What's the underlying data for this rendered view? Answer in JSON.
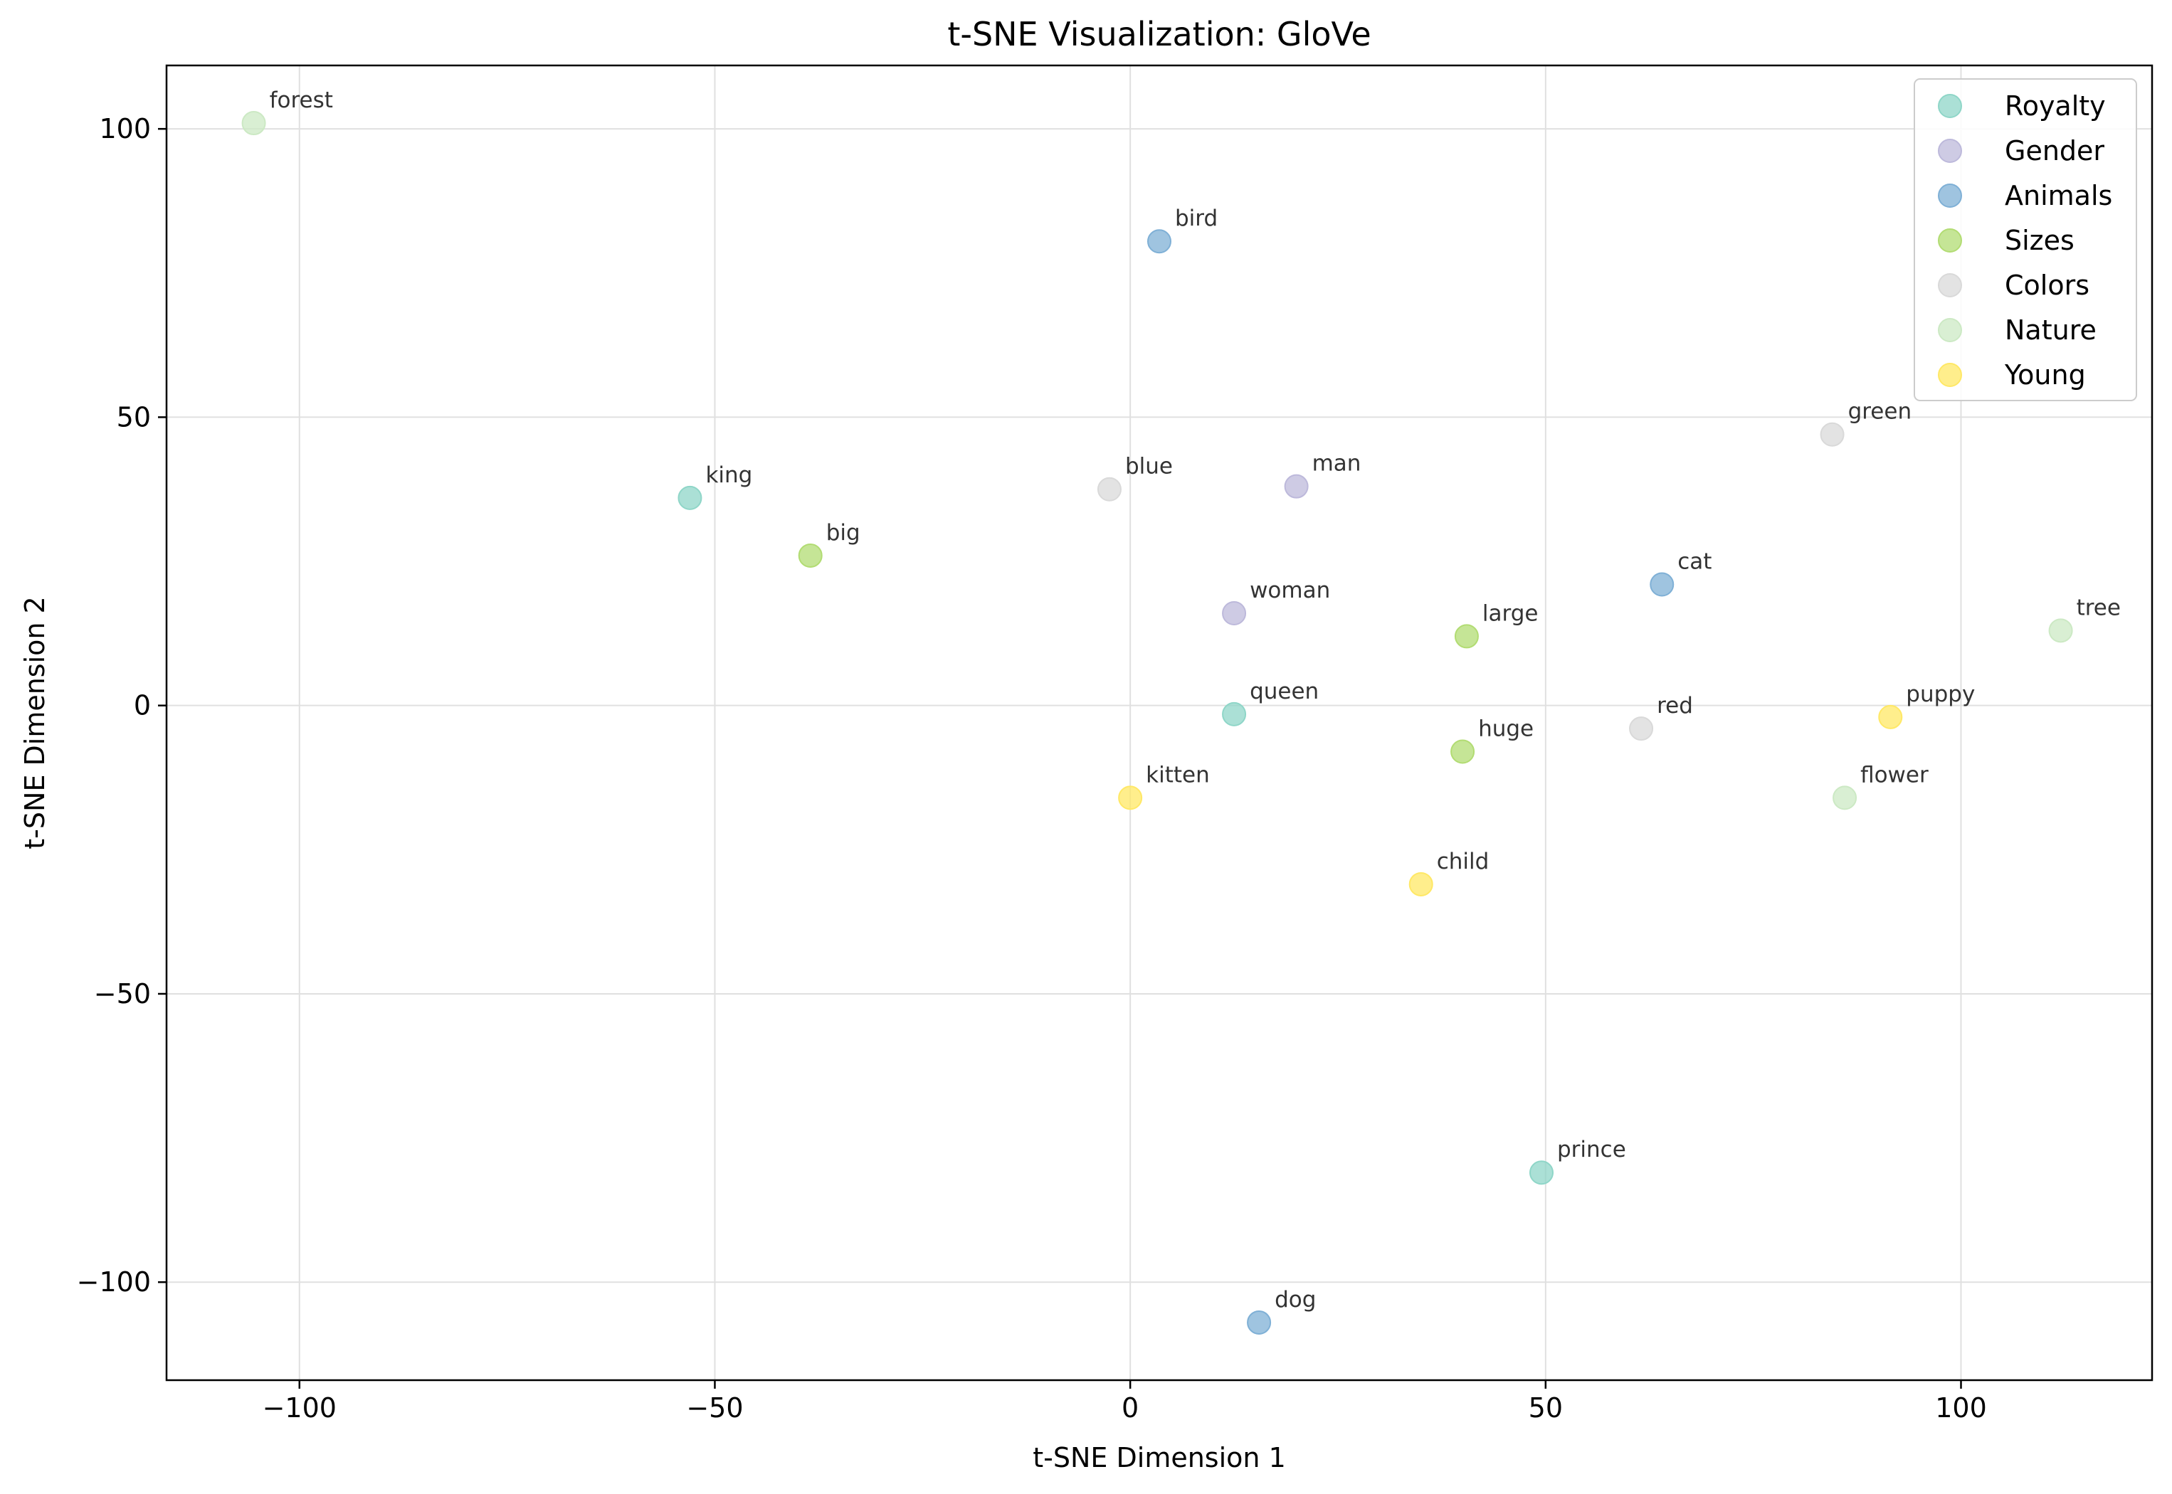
{
  "chart_data": {
    "type": "scatter",
    "title": "t-SNE Visualization: GloVe",
    "xlabel": "t-SNE Dimension 1",
    "ylabel": "t-SNE Dimension 2",
    "xlim": [
      -116,
      123
    ],
    "ylim": [
      -117,
      111
    ],
    "xticks": [
      -100,
      -50,
      0,
      50,
      100
    ],
    "yticks": [
      -100,
      -50,
      0,
      50,
      100
    ],
    "grid": true,
    "legend_position": "top-right",
    "series": [
      {
        "name": "Royalty",
        "color": "#8fd6c8",
        "points": [
          {
            "label": "king",
            "x": -53,
            "y": 36
          },
          {
            "label": "queen",
            "x": 12.5,
            "y": -1.5
          },
          {
            "label": "prince",
            "x": 49.5,
            "y": -81
          }
        ]
      },
      {
        "name": "Gender",
        "color": "#bdb9db",
        "points": [
          {
            "label": "man",
            "x": 20,
            "y": 38
          },
          {
            "label": "woman",
            "x": 12.5,
            "y": 16
          }
        ]
      },
      {
        "name": "Animals",
        "color": "#7fb0d6",
        "points": [
          {
            "label": "bird",
            "x": 3.5,
            "y": 80.5
          },
          {
            "label": "cat",
            "x": 64,
            "y": 21
          },
          {
            "label": "dog",
            "x": 15.5,
            "y": -107
          }
        ]
      },
      {
        "name": "Sizes",
        "color": "#b2dc73",
        "points": [
          {
            "label": "big",
            "x": -38.5,
            "y": 26
          },
          {
            "label": "large",
            "x": 40.5,
            "y": 12
          },
          {
            "label": "huge",
            "x": 40,
            "y": -8
          }
        ]
      },
      {
        "name": "Colors",
        "color": "#d9d9d9",
        "points": [
          {
            "label": "blue",
            "x": -2.5,
            "y": 37.5
          },
          {
            "label": "green",
            "x": 84.5,
            "y": 47
          },
          {
            "label": "red",
            "x": 61.5,
            "y": -4
          }
        ]
      },
      {
        "name": "Nature",
        "color": "#cce9c4",
        "points": [
          {
            "label": "forest",
            "x": -105.5,
            "y": 101
          },
          {
            "label": "tree",
            "x": 112,
            "y": 13
          },
          {
            "label": "flower",
            "x": 86,
            "y": -16
          }
        ]
      },
      {
        "name": "Young",
        "color": "#ffe866",
        "points": [
          {
            "label": "kitten",
            "x": 0,
            "y": -16
          },
          {
            "label": "child",
            "x": 35,
            "y": -31
          },
          {
            "label": "puppy",
            "x": 91.5,
            "y": -2
          }
        ]
      }
    ]
  }
}
